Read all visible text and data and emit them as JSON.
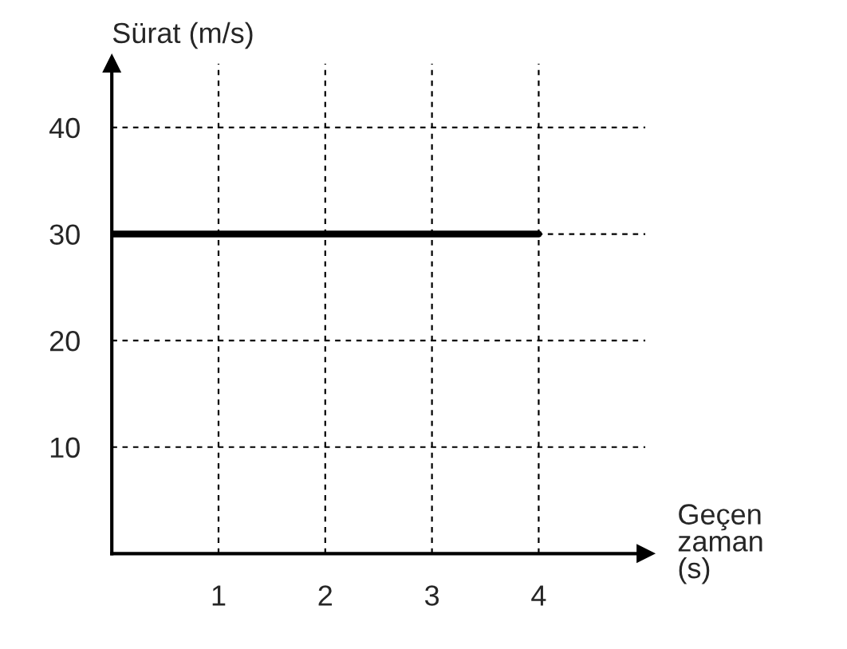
{
  "chart_data": {
    "type": "line",
    "ylabel": "Sürat (m/s)",
    "xlabel": "Geçen zaman (s)",
    "x": [
      0,
      4
    ],
    "series": [
      {
        "color": "#000000",
        "values": [
          30,
          30
        ]
      }
    ],
    "xlim": [
      0,
      5
    ],
    "ylim": [
      0,
      46
    ],
    "xticks": [
      1,
      2,
      3,
      4
    ],
    "yticks": [
      10,
      20,
      30,
      40
    ],
    "grid": true,
    "marker": "none",
    "line_style": "solid"
  }
}
